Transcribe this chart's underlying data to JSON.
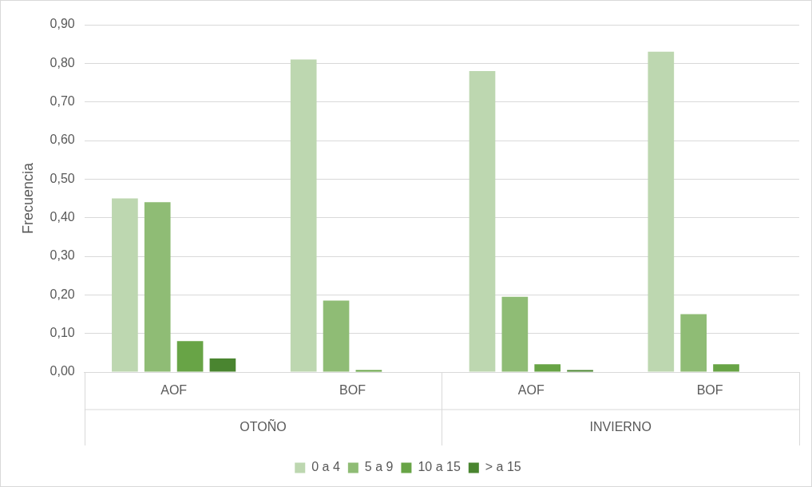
{
  "chart_data": {
    "type": "bar",
    "ylabel": "Frecuencia",
    "categories": [
      "AOF",
      "BOF",
      "AOF",
      "BOF"
    ],
    "series": [
      {
        "name": "0 a 4",
        "color": "#bdd7b0",
        "values": [
          0.45,
          0.81,
          0.78,
          0.83
        ]
      },
      {
        "name": "5 a 9",
        "color": "#8fbc75",
        "values": [
          0.44,
          0.185,
          0.195,
          0.15
        ]
      },
      {
        "name": "10 a 15",
        "color": "#68a446",
        "values": [
          0.08,
          0.005,
          0.02,
          0.02
        ]
      },
      {
        "name": "> a 15",
        "color": "#4a8530",
        "values": [
          0.035,
          0,
          0.005,
          0
        ]
      }
    ],
    "annotations": [
      "OTOÑO",
      "INVIERNO"
    ],
    "ylim": [
      0,
      0.9
    ],
    "yticks": [
      {
        "value": 0,
        "label": "0,00"
      },
      {
        "value": 0.1,
        "label": "0,10"
      },
      {
        "value": 0.2,
        "label": "0,20"
      },
      {
        "value": 0.3,
        "label": "0,30"
      },
      {
        "value": 0.4,
        "label": "0,40"
      },
      {
        "value": 0.5,
        "label": "0,50"
      },
      {
        "value": 0.6,
        "label": "0,60"
      },
      {
        "value": 0.7,
        "label": "0,70"
      },
      {
        "value": 0.8,
        "label": "0,80"
      },
      {
        "value": 0.9,
        "label": "0,90"
      }
    ],
    "grid": "y",
    "legend": "bottom"
  }
}
